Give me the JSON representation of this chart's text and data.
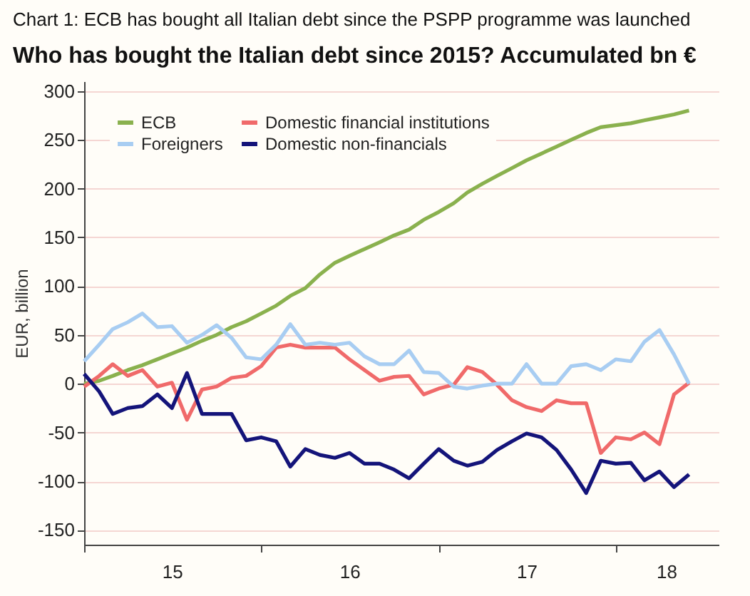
{
  "chart_data": {
    "type": "line",
    "title": "Chart 1: ECB has bought all Italian debt since the PSPP programme was launched",
    "subtitle": "Who has bought the Italian debt since 2015? Accumulated bn €",
    "ylabel": "EUR, billion",
    "x": [
      "2015-01",
      "2015-02",
      "2015-03",
      "2015-04",
      "2015-05",
      "2015-06",
      "2015-07",
      "2015-08",
      "2015-09",
      "2015-10",
      "2015-11",
      "2015-12",
      "2016-01",
      "2016-02",
      "2016-03",
      "2016-04",
      "2016-05",
      "2016-06",
      "2016-07",
      "2016-08",
      "2016-09",
      "2016-10",
      "2016-11",
      "2016-12",
      "2017-01",
      "2017-02",
      "2017-03",
      "2017-04",
      "2017-05",
      "2017-06",
      "2017-07",
      "2017-08",
      "2017-09",
      "2017-10",
      "2017-11",
      "2017-12",
      "2018-01",
      "2018-02",
      "2018-03",
      "2018-04",
      "2018-05",
      "2018-06"
    ],
    "series": [
      {
        "name": "ECB",
        "color": "#8ab14e",
        "values": [
          0,
          3,
          8,
          14,
          19,
          25,
          31,
          37,
          44,
          50,
          58,
          64,
          72,
          80,
          90,
          98,
          112,
          124,
          131,
          138,
          145,
          152,
          158,
          168,
          176,
          185,
          196,
          205,
          213,
          221,
          229,
          236,
          243,
          250,
          257,
          263,
          265,
          267,
          270,
          273,
          276,
          280
        ]
      },
      {
        "name": "Domestic financial institutions",
        "color": "#f06a6a",
        "values": [
          -3,
          8,
          20,
          8,
          14,
          -3,
          1,
          -37,
          -6,
          -3,
          6,
          8,
          18,
          37,
          40,
          37,
          37,
          37,
          25,
          14,
          3,
          7,
          8,
          -11,
          -5,
          -1,
          17,
          12,
          -1,
          -17,
          -24,
          -28,
          -17,
          -20,
          -20,
          -71,
          -55,
          -57,
          -50,
          -62,
          -11,
          1
        ]
      },
      {
        "name": "Foreigners",
        "color": "#a8cdf2",
        "values": [
          23,
          40,
          56,
          63,
          72,
          58,
          59,
          42,
          50,
          60,
          47,
          27,
          25,
          40,
          61,
          40,
          42,
          40,
          42,
          28,
          20,
          20,
          34,
          12,
          11,
          -3,
          -5,
          -2,
          0,
          0,
          20,
          0,
          0,
          18,
          20,
          14,
          25,
          23,
          43,
          55,
          30,
          0
        ]
      },
      {
        "name": "Domestic non-financials",
        "color": "#14147a",
        "values": [
          10,
          -8,
          -31,
          -25,
          -23,
          -11,
          -25,
          11,
          -31,
          -31,
          -31,
          -58,
          -55,
          -59,
          -85,
          -67,
          -73,
          -76,
          -71,
          -82,
          -82,
          -88,
          -97,
          -82,
          -67,
          -79,
          -84,
          -80,
          -68,
          -59,
          -51,
          -55,
          -68,
          -88,
          -112,
          -79,
          -82,
          -81,
          -99,
          -90,
          -106,
          -93
        ]
      }
    ],
    "xlim": [
      "2015-01",
      "2018-08"
    ],
    "xticks": [
      {
        "value": "2015-01",
        "label": null
      },
      {
        "value": "2015-07",
        "label": "15"
      },
      {
        "value": "2016-01",
        "label": null
      },
      {
        "value": "2016-07",
        "label": "16"
      },
      {
        "value": "2017-01",
        "label": null
      },
      {
        "value": "2017-07",
        "label": "17"
      },
      {
        "value": "2018-01",
        "label": null
      },
      {
        "value": "2018-04-15",
        "label": "18"
      }
    ],
    "ylim": [
      -165,
      310
    ],
    "yticks": [
      -150,
      -100,
      -50,
      0,
      50,
      100,
      150,
      200,
      250,
      300
    ],
    "grid": "y",
    "legend": "top left",
    "marker": "none",
    "line_style": "solid"
  }
}
